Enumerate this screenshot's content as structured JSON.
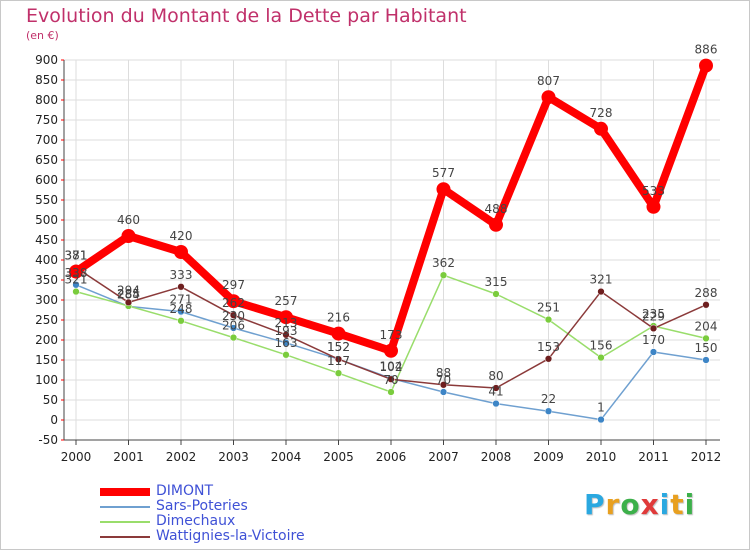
{
  "title": "Evolution du Montant de la Dette par Habitant",
  "subtitle": "(en €)",
  "logo": {
    "text": "Proxiti",
    "letters": [
      {
        "ch": "P",
        "color": "#2aa8e0"
      },
      {
        "ch": "r",
        "color": "#e8a020"
      },
      {
        "ch": "o",
        "color": "#3cb04a"
      },
      {
        "ch": "x",
        "color": "#e03a3a"
      },
      {
        "ch": "i",
        "color": "#2aa8e0"
      },
      {
        "ch": "t",
        "color": "#e8a020"
      },
      {
        "ch": "i",
        "color": "#3cb04a"
      }
    ]
  },
  "chart_data": {
    "type": "line",
    "title": "Evolution du Montant de la Dette par Habitant",
    "subtitle": "(en €)",
    "xlabel": "",
    "ylabel": "",
    "x": [
      "2000",
      "2001",
      "2002",
      "2003",
      "2004",
      "2005",
      "2006",
      "2007",
      "2008",
      "2009",
      "2010",
      "2011",
      "2012"
    ],
    "ylim": [
      -50,
      900
    ],
    "yticks": [
      -50,
      0,
      50,
      100,
      150,
      200,
      250,
      300,
      350,
      400,
      450,
      500,
      550,
      600,
      650,
      700,
      750,
      800,
      850,
      900
    ],
    "grid": true,
    "legend_position": "bottom-left",
    "series": [
      {
        "name": "Sars-Poteries",
        "color": "#6fa0d0",
        "marker_color": "#3d85c6",
        "values": [
          338,
          284,
          271,
          230,
          193,
          152,
          104,
          70,
          41,
          22,
          1,
          170,
          150
        ]
      },
      {
        "name": "Dimechaux",
        "color": "#99dd6b",
        "marker_color": "#7acc3d",
        "values": [
          321,
          285,
          248,
          206,
          163,
          117,
          70,
          362,
          315,
          251,
          156,
          235,
          204
        ]
      },
      {
        "name": "Wattignies-la-Victoire",
        "color": "#8b3a3a",
        "marker_color": "#6e1e1e",
        "values": [
          381,
          294,
          333,
          262,
          213,
          152,
          102,
          88,
          80,
          153,
          321,
          229,
          288
        ]
      },
      {
        "name": "DIMONT",
        "color": "#ff0000",
        "marker_color": "#ff0000",
        "values": [
          371,
          460,
          420,
          297,
          257,
          216,
          173,
          577,
          488,
          807,
          728,
          533,
          886
        ]
      }
    ],
    "legend_order": [
      "DIMONT",
      "Sars-Poteries",
      "Dimechaux",
      "Wattignies-la-Victoire"
    ]
  }
}
